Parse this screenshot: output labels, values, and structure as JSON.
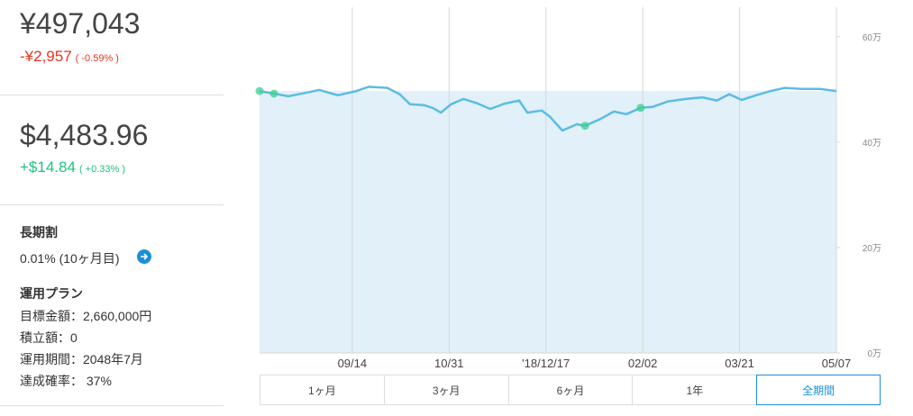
{
  "left_panel": {
    "jpy_total": "¥497,043",
    "jpy_change": "-¥2,957",
    "jpy_change_pct": "( -0.59% )",
    "usd_total": "$4,483.96",
    "usd_change": "+$14.84",
    "usd_change_pct": "( +0.33% )",
    "discount": {
      "title": "長期割",
      "value": "0.01% (10ヶ月目)"
    },
    "plan": {
      "title": "運用プラン",
      "items": [
        "目標金額：2,660,000円",
        "積立額：0",
        "運用期間：2048年7月",
        "達成確率： 37%"
      ]
    }
  },
  "chart_data": {
    "type": "line",
    "color": "#5bbce4",
    "area_color": "#e1f0f9",
    "x": [
      0,
      7,
      14,
      23,
      29,
      38,
      47,
      53,
      62,
      68,
      73,
      80,
      84,
      88,
      93,
      99,
      106,
      112,
      119,
      126,
      130,
      137,
      141,
      147,
      154,
      158,
      165,
      172,
      178,
      185,
      191,
      198,
      207,
      215,
      222,
      228,
      234,
      241,
      248,
      255,
      263,
      272,
      280
    ],
    "values": [
      49.7,
      49.2,
      48.7,
      49.4,
      49.9,
      48.9,
      49.7,
      50.5,
      50.3,
      49.1,
      47.2,
      47.0,
      46.5,
      45.6,
      47.2,
      48.2,
      47.3,
      46.3,
      47.3,
      47.9,
      45.6,
      46.0,
      44.8,
      42.2,
      43.4,
      43.1,
      44.3,
      45.8,
      45.3,
      46.5,
      46.7,
      47.7,
      48.2,
      48.5,
      47.9,
      49.1,
      48.0,
      48.9,
      49.7,
      50.3,
      50.1,
      50.1,
      49.7
    ],
    "markers": {
      "color": "#3ecf8e",
      "x": [
        0,
        7,
        158,
        185
      ],
      "values": [
        49.7,
        49.2,
        43.1,
        46.5
      ]
    },
    "xlim": [
      0,
      280
    ],
    "xticks": [
      {
        "value": 45,
        "label": "09/14"
      },
      {
        "value": 92,
        "label": "10/31"
      },
      {
        "value": 139,
        "label": "'18/12/17"
      },
      {
        "value": 186,
        "label": "02/02"
      },
      {
        "value": 233,
        "label": "03/21"
      },
      {
        "value": 280,
        "label": "05/07"
      }
    ],
    "ylim": [
      0,
      65.6
    ],
    "yticks": [
      {
        "value": 0,
        "label": "0万"
      },
      {
        "value": 20,
        "label": "20万"
      },
      {
        "value": 40,
        "label": "40万"
      },
      {
        "value": 60,
        "label": "60万"
      }
    ]
  },
  "range_buttons": {
    "options": [
      "1ヶ月",
      "3ヶ月",
      "6ヶ月",
      "1年",
      "全期間"
    ],
    "selected": 4
  }
}
